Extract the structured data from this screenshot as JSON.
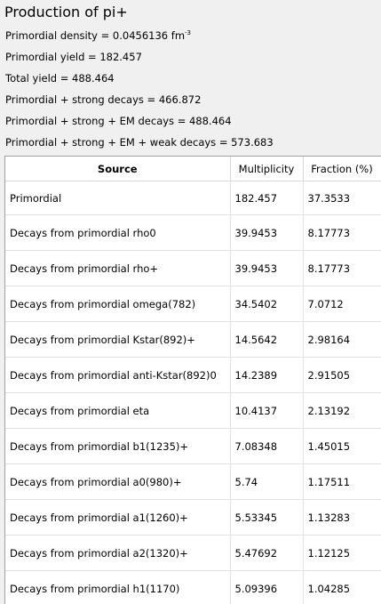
{
  "title": "Production of pi+",
  "stats": {
    "density_prefix": "Primordial density = 0.0456136 fm",
    "density_exp": "-3",
    "primordial_yield": "Primordial yield = 182.457",
    "total_yield": "Total yield = 488.464",
    "strong": "Primordial + strong decays = 466.872",
    "strong_em": "Primordial + strong + EM decays = 488.464",
    "strong_em_weak": "Primordial + strong + EM + weak decays = 573.683"
  },
  "table": {
    "headers": {
      "source": "Source",
      "multiplicity": "Multiplicity",
      "fraction": "Fraction (%)"
    },
    "rows": [
      {
        "source": "Primordial",
        "multiplicity": "182.457",
        "fraction": "37.3533"
      },
      {
        "source": "Decays from primordial rho0",
        "multiplicity": "39.9453",
        "fraction": "8.17773"
      },
      {
        "source": "Decays from primordial rho+",
        "multiplicity": "39.9453",
        "fraction": "8.17773"
      },
      {
        "source": "Decays from primordial omega(782)",
        "multiplicity": "34.5402",
        "fraction": "7.0712"
      },
      {
        "source": "Decays from primordial Kstar(892)+",
        "multiplicity": "14.5642",
        "fraction": "2.98164"
      },
      {
        "source": "Decays from primordial anti-Kstar(892)0",
        "multiplicity": "14.2389",
        "fraction": "2.91505"
      },
      {
        "source": "Decays from primordial eta",
        "multiplicity": "10.4137",
        "fraction": "2.13192"
      },
      {
        "source": "Decays from primordial b1(1235)+",
        "multiplicity": "7.08348",
        "fraction": "1.45015"
      },
      {
        "source": "Decays from primordial a0(980)+",
        "multiplicity": "5.74",
        "fraction": "1.17511"
      },
      {
        "source": "Decays from primordial a1(1260)+",
        "multiplicity": "5.53345",
        "fraction": "1.13283"
      },
      {
        "source": "Decays from primordial a2(1320)+",
        "multiplicity": "5.47692",
        "fraction": "1.12125"
      },
      {
        "source": "Decays from primordial h1(1170)",
        "multiplicity": "5.09396",
        "fraction": "1.04285"
      }
    ]
  }
}
